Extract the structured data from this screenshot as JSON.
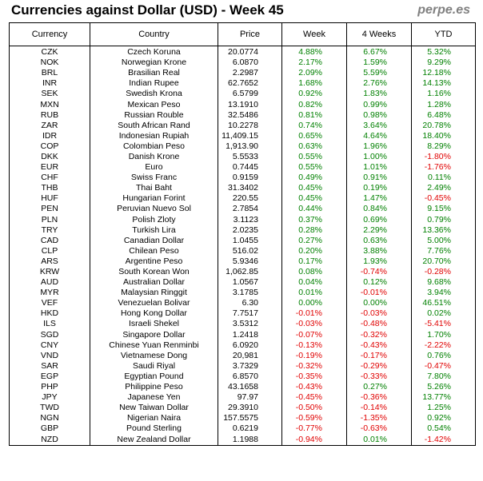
{
  "header": {
    "title": "Currencies against Dollar (USD) - Week 45",
    "brand": "perpe.es"
  },
  "table": {
    "columns": [
      "Currency",
      "Country",
      "Price",
      "Week",
      "4 Weeks",
      "YTD"
    ],
    "rows": [
      {
        "code": "CZK",
        "country": "Czech Koruna",
        "price": "20.0774",
        "week": "4.88%",
        "four_weeks": "6.67%",
        "ytd": "5.32%"
      },
      {
        "code": "NOK",
        "country": "Norwegian Krone",
        "price": "6.0870",
        "week": "2.17%",
        "four_weeks": "1.59%",
        "ytd": "9.29%"
      },
      {
        "code": "BRL",
        "country": "Brasilian Real",
        "price": "2.2987",
        "week": "2.09%",
        "four_weeks": "5.59%",
        "ytd": "12.18%"
      },
      {
        "code": "INR",
        "country": "Indian Rupee",
        "price": "62.7652",
        "week": "1.68%",
        "four_weeks": "2.76%",
        "ytd": "14.13%"
      },
      {
        "code": "SEK",
        "country": "Swedish Krona",
        "price": "6.5799",
        "week": "0.92%",
        "four_weeks": "1.83%",
        "ytd": "1.16%"
      },
      {
        "code": "MXN",
        "country": "Mexican Peso",
        "price": "13.1910",
        "week": "0.82%",
        "four_weeks": "0.99%",
        "ytd": "1.28%"
      },
      {
        "code": "RUB",
        "country": "Russian Rouble",
        "price": "32.5486",
        "week": "0.81%",
        "four_weeks": "0.98%",
        "ytd": "6.48%"
      },
      {
        "code": "ZAR",
        "country": "South African Rand",
        "price": "10.2278",
        "week": "0.74%",
        "four_weeks": "3.64%",
        "ytd": "20.78%"
      },
      {
        "code": "IDR",
        "country": "Indonesian Rupiah",
        "price": "11,409.15",
        "week": "0.65%",
        "four_weeks": "4.64%",
        "ytd": "18.40%"
      },
      {
        "code": "COP",
        "country": "Colombian Peso",
        "price": "1,913.90",
        "week": "0.63%",
        "four_weeks": "1.96%",
        "ytd": "8.29%"
      },
      {
        "code": "DKK",
        "country": "Danish Krone",
        "price": "5.5533",
        "week": "0.55%",
        "four_weeks": "1.00%",
        "ytd": "-1.80%"
      },
      {
        "code": "EUR",
        "country": "Euro",
        "price": "0.7445",
        "week": "0.55%",
        "four_weeks": "1.01%",
        "ytd": "-1.76%"
      },
      {
        "code": "CHF",
        "country": "Swiss Franc",
        "price": "0.9159",
        "week": "0.49%",
        "four_weeks": "0.91%",
        "ytd": "0.11%"
      },
      {
        "code": "THB",
        "country": "Thai Baht",
        "price": "31.3402",
        "week": "0.45%",
        "four_weeks": "0.19%",
        "ytd": "2.49%"
      },
      {
        "code": "HUF",
        "country": "Hungarian Forint",
        "price": "220.55",
        "week": "0.45%",
        "four_weeks": "1.47%",
        "ytd": "-0.45%"
      },
      {
        "code": "PEN",
        "country": "Peruvian Nuevo Sol",
        "price": "2.7854",
        "week": "0.44%",
        "four_weeks": "0.84%",
        "ytd": "9.15%"
      },
      {
        "code": "PLN",
        "country": "Polish Zloty",
        "price": "3.1123",
        "week": "0.37%",
        "four_weeks": "0.69%",
        "ytd": "0.79%"
      },
      {
        "code": "TRY",
        "country": "Turkish Lira",
        "price": "2.0235",
        "week": "0.28%",
        "four_weeks": "2.29%",
        "ytd": "13.36%"
      },
      {
        "code": "CAD",
        "country": "Canadian Dollar",
        "price": "1.0455",
        "week": "0.27%",
        "four_weeks": "0.63%",
        "ytd": "5.00%"
      },
      {
        "code": "CLP",
        "country": "Chilean Peso",
        "price": "516.02",
        "week": "0.20%",
        "four_weeks": "3.88%",
        "ytd": "7.76%"
      },
      {
        "code": "ARS",
        "country": "Argentine Peso",
        "price": "5.9346",
        "week": "0.17%",
        "four_weeks": "1.93%",
        "ytd": "20.70%"
      },
      {
        "code": "KRW",
        "country": "South Korean Won",
        "price": "1,062.85",
        "week": "0.08%",
        "four_weeks": "-0.74%",
        "ytd": "-0.28%"
      },
      {
        "code": "AUD",
        "country": "Australian Dollar",
        "price": "1.0567",
        "week": "0.04%",
        "four_weeks": "0.12%",
        "ytd": "9.68%"
      },
      {
        "code": "MYR",
        "country": "Malaysian Ringgit",
        "price": "3.1785",
        "week": "0.01%",
        "four_weeks": "-0.01%",
        "ytd": "3.94%"
      },
      {
        "code": "VEF",
        "country": "Venezuelan Bolivar",
        "price": "6.30",
        "week": "0.00%",
        "four_weeks": "0.00%",
        "ytd": "46.51%"
      },
      {
        "code": "HKD",
        "country": "Hong Kong Dollar",
        "price": "7.7517",
        "week": "-0.01%",
        "four_weeks": "-0.03%",
        "ytd": "0.02%"
      },
      {
        "code": "ILS",
        "country": "Israeli Shekel",
        "price": "3.5312",
        "week": "-0.03%",
        "four_weeks": "-0.48%",
        "ytd": "-5.41%"
      },
      {
        "code": "SGD",
        "country": "Singapore Dollar",
        "price": "1.2418",
        "week": "-0.07%",
        "four_weeks": "-0.32%",
        "ytd": "1.70%"
      },
      {
        "code": "CNY",
        "country": "Chinese Yuan Renminbi",
        "price": "6.0920",
        "week": "-0.13%",
        "four_weeks": "-0.43%",
        "ytd": "-2.22%"
      },
      {
        "code": "VND",
        "country": "Vietnamese Dong",
        "price": "20,981",
        "week": "-0.19%",
        "four_weeks": "-0.17%",
        "ytd": "0.76%"
      },
      {
        "code": "SAR",
        "country": "Saudi Riyal",
        "price": "3.7329",
        "week": "-0.32%",
        "four_weeks": "-0.29%",
        "ytd": "-0.47%"
      },
      {
        "code": "EGP",
        "country": "Egyptian Pound",
        "price": "6.8570",
        "week": "-0.35%",
        "four_weeks": "-0.33%",
        "ytd": "7.80%"
      },
      {
        "code": "PHP",
        "country": "Philippine Peso",
        "price": "43.1658",
        "week": "-0.43%",
        "four_weeks": "0.27%",
        "ytd": "5.26%"
      },
      {
        "code": "JPY",
        "country": "Japanese Yen",
        "price": "97.97",
        "week": "-0.45%",
        "four_weeks": "-0.36%",
        "ytd": "13.77%"
      },
      {
        "code": "TWD",
        "country": "New Taiwan Dollar",
        "price": "29.3910",
        "week": "-0.50%",
        "four_weeks": "-0.14%",
        "ytd": "1.25%"
      },
      {
        "code": "NGN",
        "country": "Nigerian Naira",
        "price": "157.5575",
        "week": "-0.59%",
        "four_weeks": "-1.35%",
        "ytd": "0.92%"
      },
      {
        "code": "GBP",
        "country": "Pound Sterling",
        "price": "0.6219",
        "week": "-0.77%",
        "four_weeks": "-0.63%",
        "ytd": "0.54%"
      },
      {
        "code": "NZD",
        "country": "New Zealand Dollar",
        "price": "1.1988",
        "week": "-0.94%",
        "four_weeks": "0.01%",
        "ytd": "-1.42%"
      }
    ]
  },
  "colors": {
    "positive": "#008000",
    "negative": "#e00000",
    "brand": "#808080"
  }
}
